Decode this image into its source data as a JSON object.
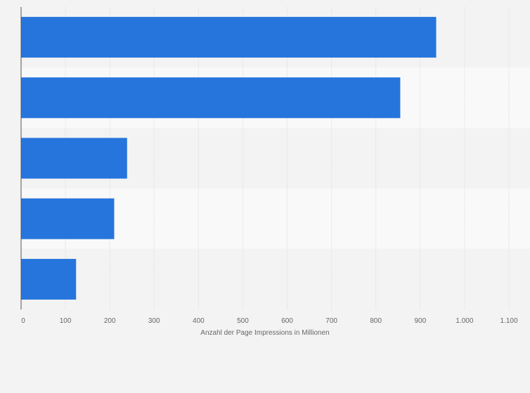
{
  "chart_data": {
    "type": "bar",
    "orientation": "horizontal",
    "categories": [
      "",
      "",
      "",
      "",
      ""
    ],
    "values": [
      936,
      855,
      239,
      210,
      124
    ],
    "title": "",
    "xlabel": "Anzahl der Page Impressions in Millionen",
    "ylabel": "",
    "xlim": [
      0,
      1100
    ],
    "xticks": [
      0,
      100,
      200,
      300,
      400,
      500,
      600,
      700,
      800,
      900,
      1000,
      1100
    ],
    "xtick_labels": [
      "0",
      "100",
      "200",
      "300",
      "400",
      "500",
      "600",
      "700",
      "800",
      "900",
      "1.000",
      "1.100"
    ],
    "grid": true,
    "legend": "none",
    "colors": {
      "bar": "#2675dd",
      "background": "#f3f3f3",
      "band_light": "#f9f9f9",
      "gridline": "#dddddd",
      "axis": "#555555",
      "text": "#666666"
    }
  }
}
